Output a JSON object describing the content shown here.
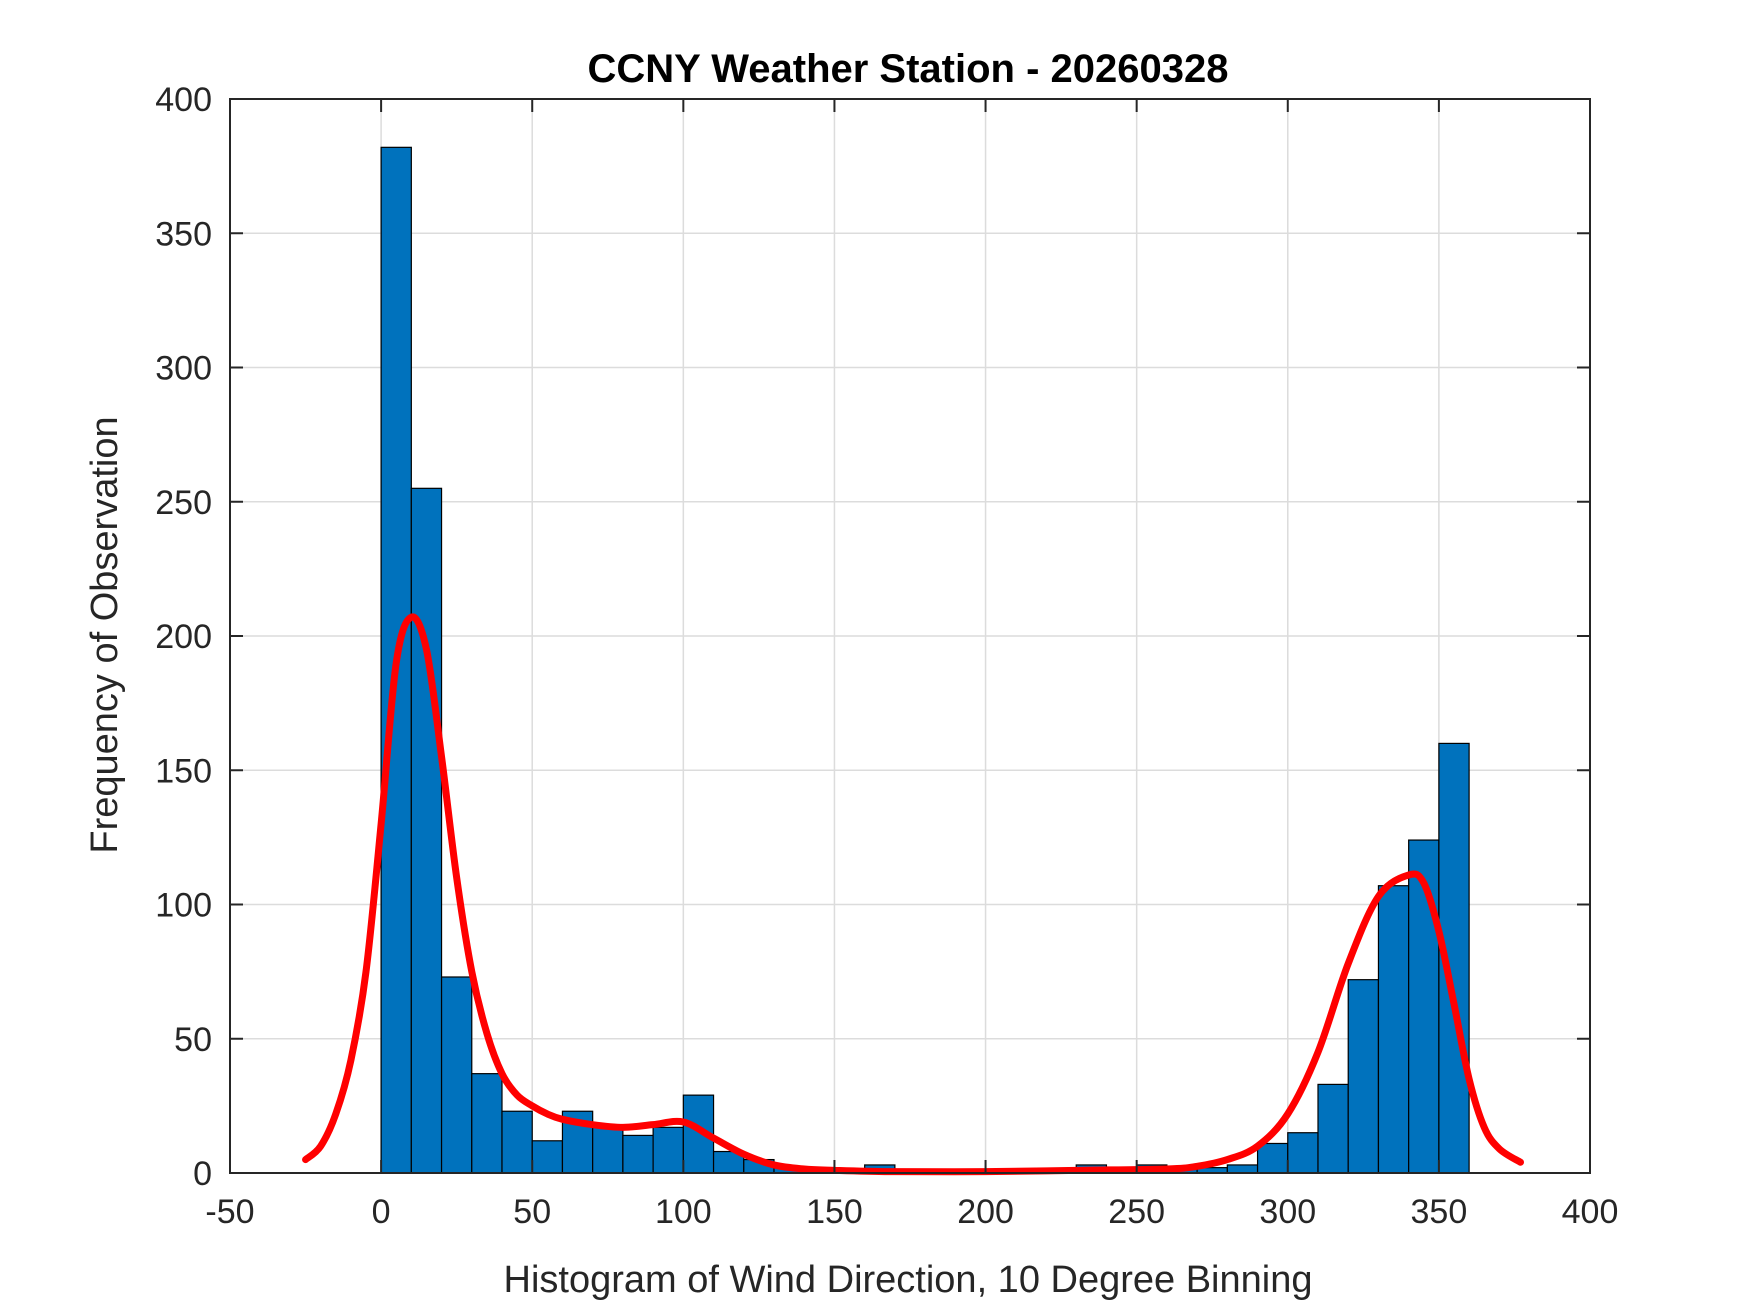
{
  "chart_data": {
    "type": "bar",
    "title": "CCNY Weather Station - 20260328",
    "xlabel": "Histogram of Wind Direction, 10 Degree Binning",
    "ylabel": "Frequency of Observation",
    "xlim": [
      -50,
      400
    ],
    "ylim": [
      0,
      400
    ],
    "xticks": [
      -50,
      0,
      50,
      100,
      150,
      200,
      250,
      300,
      350,
      400
    ],
    "yticks": [
      0,
      50,
      100,
      150,
      200,
      250,
      300,
      350,
      400
    ],
    "grid": true,
    "bin_width": 10,
    "bin_edges_start": 0,
    "values": [
      382,
      255,
      73,
      37,
      23,
      12,
      23,
      18,
      14,
      17,
      29,
      8,
      5,
      2,
      1,
      1,
      3,
      1,
      1,
      1,
      1,
      1,
      1,
      3,
      1,
      3,
      2,
      2,
      3,
      11,
      15,
      33,
      72,
      107,
      124,
      160
    ],
    "series": [
      {
        "name": "density fit",
        "color": "#ff0000",
        "x": [
          -25,
          -20,
          -15,
          -10,
          -5,
          0,
          5,
          10,
          15,
          20,
          25,
          30,
          35,
          40,
          45,
          50,
          55,
          60,
          70,
          80,
          90,
          100,
          110,
          120,
          130,
          140,
          150,
          170,
          200,
          230,
          260,
          270,
          280,
          290,
          300,
          310,
          320,
          330,
          340,
          345,
          350,
          355,
          360,
          365,
          370,
          377
        ],
        "y": [
          5,
          10,
          22,
          42,
          75,
          130,
          190,
          207,
          195,
          155,
          110,
          75,
          52,
          37,
          29,
          25,
          22,
          20,
          18,
          17,
          18,
          19,
          13,
          7,
          3,
          1.5,
          1,
          0.5,
          0.5,
          1,
          1.5,
          2.5,
          5,
          10,
          22,
          45,
          78,
          103,
          111,
          108,
          90,
          63,
          35,
          17,
          9,
          4
        ]
      }
    ],
    "colors": {
      "bars": "#0072bd",
      "bar_edge": "#000000",
      "grid": "#dcdcdc",
      "axis": "#262626"
    }
  }
}
